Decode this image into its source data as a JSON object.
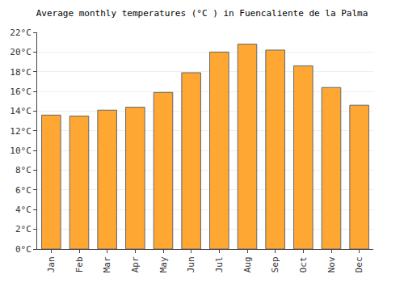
{
  "chart_data": {
    "type": "bar",
    "title": "Average monthly temperatures (°C ) in Fuencaliente de la Palma",
    "categories": [
      "Jan",
      "Feb",
      "Mar",
      "Apr",
      "May",
      "Jun",
      "Jul",
      "Aug",
      "Sep",
      "Oct",
      "Nov",
      "Dec"
    ],
    "values": [
      13.6,
      13.5,
      14.1,
      14.4,
      15.9,
      17.9,
      20.0,
      20.8,
      20.2,
      18.6,
      16.4,
      14.6
    ],
    "color": "#ffa733",
    "ylim": [
      0,
      22
    ],
    "yticks": [
      {
        "value": 0,
        "label": "0°C"
      },
      {
        "value": 2,
        "label": "2°C"
      },
      {
        "value": 4,
        "label": "4°C"
      },
      {
        "value": 6,
        "label": "6°C"
      },
      {
        "value": 8,
        "label": "8°C"
      },
      {
        "value": 10,
        "label": "10°C"
      },
      {
        "value": 12,
        "label": "12°C"
      },
      {
        "value": 14,
        "label": "14°C"
      },
      {
        "value": 16,
        "label": "16°C"
      },
      {
        "value": 18,
        "label": "18°C"
      },
      {
        "value": 20,
        "label": "20°C"
      },
      {
        "value": 22,
        "label": "22°C"
      }
    ],
    "grid": true
  }
}
